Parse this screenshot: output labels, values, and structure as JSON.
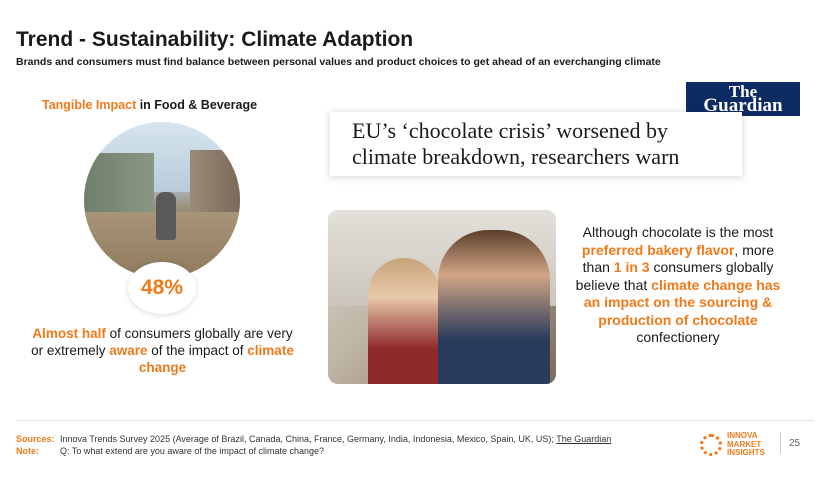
{
  "title": "Trend - Sustainability: Climate Adaption",
  "subtitle": "Brands and consumers must find balance between personal values and product choices to get ahead of an everchanging climate",
  "left": {
    "heading_highlight": "Tangible Impact",
    "heading_rest": " in Food & Beverage",
    "percent": "48%",
    "text_1": "Almost half",
    "text_2": " of consumers globally are very or extremely ",
    "text_3": "aware",
    "text_4": " of the impact of ",
    "text_5": "climate change"
  },
  "guardian": {
    "logo_line1": "The",
    "logo_line2": "Guardian",
    "headline": "EU’s ‘chocolate crisis’ worsened by climate breakdown, researchers warn"
  },
  "right": {
    "t1": "Although chocolate is the most ",
    "t2": "preferred bakery flavor",
    "t3": ", more than ",
    "t4": "1 in 3",
    "t5": " consumers globally believe that ",
    "t6": "climate change has an impact on the sourcing & production of chocolate",
    "t7": " confectionery"
  },
  "footer": {
    "sources_label": "Sources:",
    "sources_text": "Innova Trends Survey 2025 (Average of Brazil, Canada, China, France, Germany, India, Indonesia, Mexico, Spain, UK, US); ",
    "sources_link": "The Guardian",
    "note_label": "Note:",
    "note_text": "Q: To what extend are you aware of the impact of climate change?"
  },
  "brand": {
    "line1": "INNOVA",
    "line2": "MARKET",
    "line3": "INSIGHTS"
  },
  "page_number": "25",
  "colors": {
    "accent": "#f07a1a",
    "guardian_navy": "#0d2b63"
  },
  "icons": [
    "flood-street-photo",
    "chocolate-family-photo",
    "innova-logo-icon"
  ]
}
